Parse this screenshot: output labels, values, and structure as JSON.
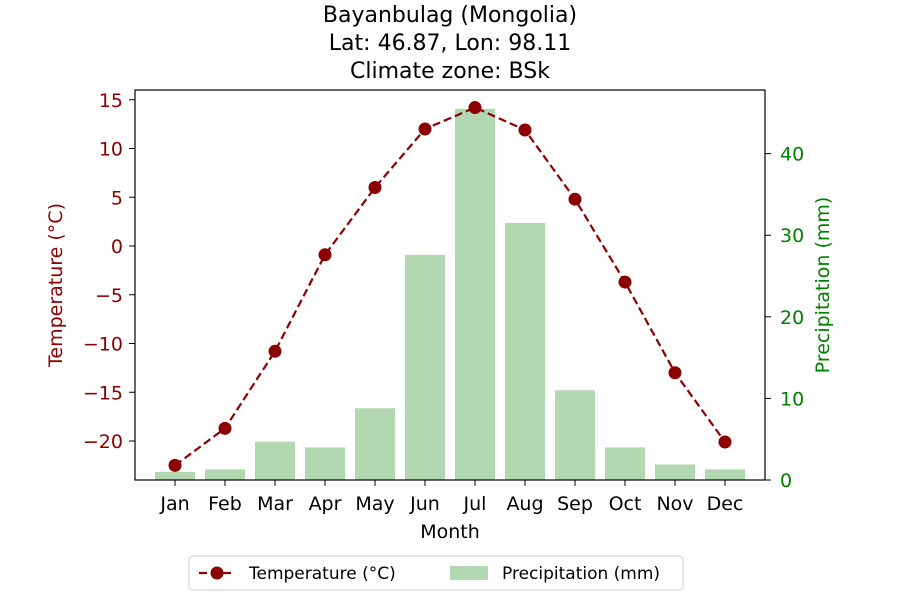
{
  "chart_data": {
    "type": "bar+line",
    "title_lines": [
      "Bayanbulag (Mongolia)",
      "Lat: 46.87, Lon: 98.11",
      "Climate zone: BSk"
    ],
    "xlabel": "Month",
    "ylabel_left": "Temperature (°C)",
    "ylabel_right": "Precipitation (mm)",
    "categories": [
      "Jan",
      "Feb",
      "Mar",
      "Apr",
      "May",
      "Jun",
      "Jul",
      "Aug",
      "Sep",
      "Oct",
      "Nov",
      "Dec"
    ],
    "temperature": {
      "name": "Temperature (°C)",
      "values": [
        -22.5,
        -18.7,
        -10.8,
        -0.9,
        6.0,
        12.0,
        14.2,
        11.9,
        4.8,
        -3.7,
        -13.0,
        -20.1
      ],
      "color": "#8b0000"
    },
    "precipitation": {
      "name": "Precipitation (mm)",
      "values": [
        1.0,
        1.3,
        4.7,
        4.0,
        8.8,
        27.6,
        45.5,
        31.5,
        11.0,
        4.0,
        1.9,
        1.3
      ],
      "color": "#b2d8b2"
    },
    "left_axis": {
      "ylim": [
        -24,
        16
      ],
      "ticks": [
        15,
        10,
        5,
        0,
        -5,
        -10,
        -15,
        -20
      ],
      "color": "#8b0000"
    },
    "right_axis": {
      "ylim": [
        0,
        47.8
      ],
      "ticks": [
        0,
        10,
        20,
        30,
        40
      ],
      "color": "#008000"
    },
    "legend": {
      "placement": "bottom-center",
      "entries": [
        "Temperature (°C)",
        "Precipitation (mm)"
      ]
    },
    "grid": false
  }
}
